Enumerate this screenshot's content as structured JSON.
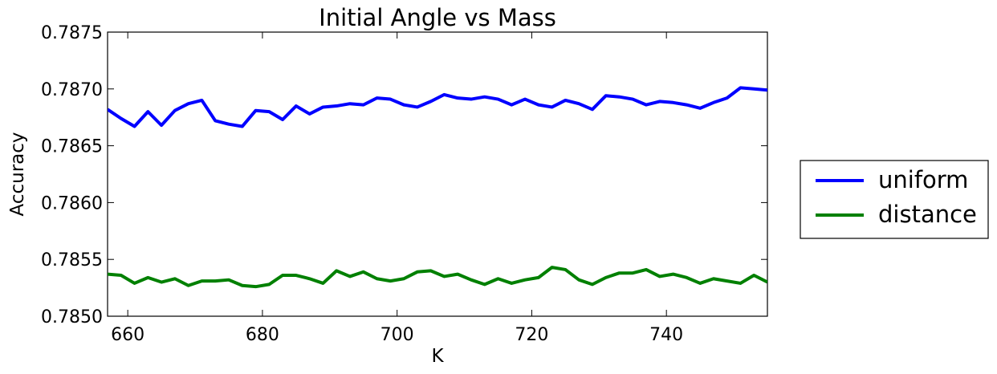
{
  "chart_data": {
    "type": "line",
    "title": "Initial Angle vs Mass",
    "xlabel": "K",
    "ylabel": "Accuracy",
    "xlim": [
      657,
      755
    ],
    "ylim": [
      0.785,
      0.7875
    ],
    "xticks": [
      660,
      680,
      700,
      720,
      740
    ],
    "yticks": [
      0.785,
      0.7855,
      0.786,
      0.7865,
      0.787,
      0.7875
    ],
    "ytick_labels": [
      "0.7850",
      "0.7855",
      "0.7860",
      "0.7865",
      "0.7870",
      "0.7875"
    ],
    "grid": false,
    "legend_position": "right, outside",
    "x": [
      657,
      659,
      661,
      663,
      665,
      667,
      669,
      671,
      673,
      675,
      677,
      679,
      681,
      683,
      685,
      687,
      689,
      691,
      693,
      695,
      697,
      699,
      701,
      703,
      705,
      707,
      709,
      711,
      713,
      715,
      717,
      719,
      721,
      723,
      725,
      727,
      729,
      731,
      733,
      735,
      737,
      739,
      741,
      743,
      745,
      747,
      749,
      751,
      753,
      755
    ],
    "series": [
      {
        "name": "uniform",
        "color": "#0000ff",
        "values": [
          0.78682,
          0.78674,
          0.78667,
          0.7868,
          0.78668,
          0.78681,
          0.78687,
          0.7869,
          0.78672,
          0.78669,
          0.78667,
          0.78681,
          0.7868,
          0.78673,
          0.78685,
          0.78678,
          0.78684,
          0.78685,
          0.78687,
          0.78686,
          0.78692,
          0.78691,
          0.78686,
          0.78684,
          0.78689,
          0.78695,
          0.78692,
          0.78691,
          0.78693,
          0.78691,
          0.78686,
          0.78691,
          0.78686,
          0.78684,
          0.7869,
          0.78687,
          0.78682,
          0.78694,
          0.78693,
          0.78691,
          0.78686,
          0.78689,
          0.78688,
          0.78686,
          0.78683,
          0.78688,
          0.78692,
          0.78701,
          0.787,
          0.78699
        ]
      },
      {
        "name": "distance",
        "color": "#008000",
        "values": [
          0.78537,
          0.78536,
          0.78529,
          0.78534,
          0.7853,
          0.78533,
          0.78527,
          0.78531,
          0.78531,
          0.78532,
          0.78527,
          0.78526,
          0.78528,
          0.78536,
          0.78536,
          0.78533,
          0.78529,
          0.7854,
          0.78535,
          0.78539,
          0.78533,
          0.78531,
          0.78533,
          0.78539,
          0.7854,
          0.78535,
          0.78537,
          0.78532,
          0.78528,
          0.78533,
          0.78529,
          0.78532,
          0.78534,
          0.78543,
          0.78541,
          0.78532,
          0.78528,
          0.78534,
          0.78538,
          0.78538,
          0.78541,
          0.78535,
          0.78537,
          0.78534,
          0.78529,
          0.78533,
          0.78531,
          0.78529,
          0.78536,
          0.7853
        ]
      }
    ]
  }
}
